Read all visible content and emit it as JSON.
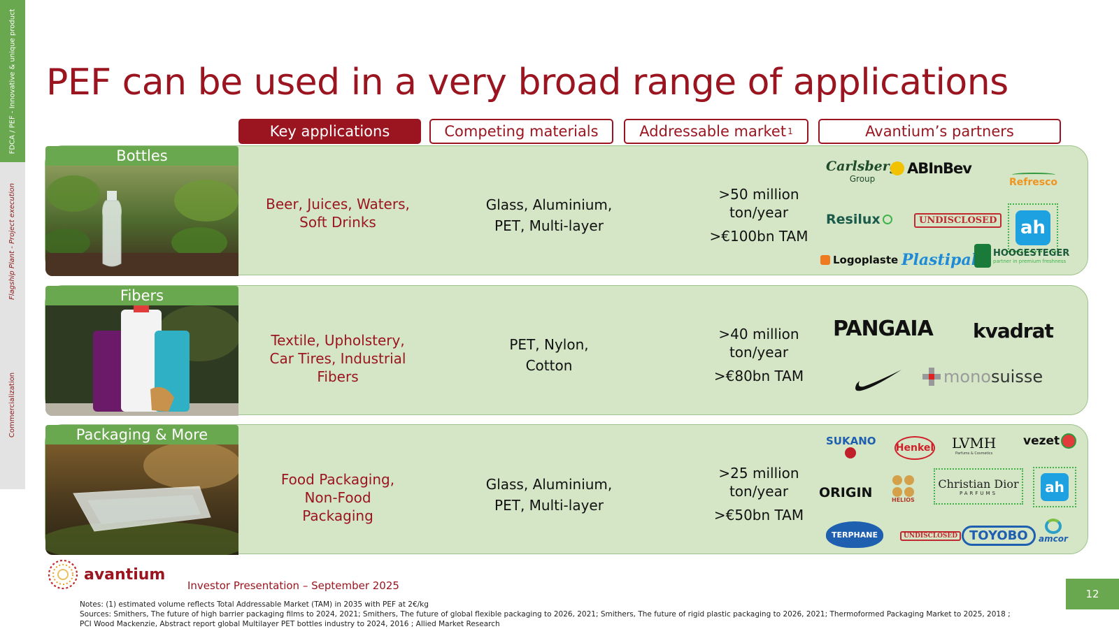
{
  "side_nav": {
    "seg1": "FDCA / PEF - Innovative & unique product",
    "seg2": "Flagship Plant - Project execution",
    "seg3": "Commercialization"
  },
  "title": "PEF can be used in a very broad range of applications",
  "columns": {
    "key_apps": "Key applications",
    "competing": "Competing materials",
    "addressable": "Addressable market",
    "addressable_sup": "1",
    "partners": "Avantium’s partners"
  },
  "rows": [
    {
      "label": "Bottles",
      "apps": [
        "Beer, Juices, Waters,",
        "Soft Drinks"
      ],
      "competing": [
        "Glass, Aluminium,",
        "PET, Multi-layer"
      ],
      "volume": [
        "&gt;50 million",
        "ton/year"
      ],
      "tam": ">€100bn TAM",
      "logos": {
        "carlsberg": "Carlsberg",
        "carlsberg_sub": "Group",
        "abinbev": "ABInBev",
        "refresco": "Refresco",
        "resilux": "Resilux",
        "undisclosed": "UNDISCLOSED",
        "logoplaste": "Logoplaste",
        "plastipak": "Plastipak",
        "hoogesteger": "HOOGESTEGER",
        "hoogesteger_sub": "partner in premium freshness"
      }
    },
    {
      "label": "Fibers",
      "apps": [
        "Textile, Upholstery,",
        "Car Tires, Industrial",
        "Fibers"
      ],
      "competing": [
        "PET, Nylon,",
        "Cotton"
      ],
      "volume": [
        "&gt;40 million",
        "ton/year"
      ],
      "tam": ">€80bn TAM",
      "logos": {
        "pangaia": "PANGAIA",
        "kvadrat": "kvadrat",
        "monosuisse_a": "mono",
        "monosuisse_b": "suisse"
      }
    },
    {
      "label": "Packaging & More",
      "apps": [
        "Food Packaging,",
        "Non-Food",
        "Packaging"
      ],
      "competing": [
        "Glass, Aluminium,",
        "PET, Multi-layer"
      ],
      "volume": [
        "&gt;25 million",
        "ton/year"
      ],
      "tam": ">€50bn TAM",
      "logos": {
        "suntory_a": "KA",
        "suntory_b": "SU",
        "suntory_c": "NO",
        "henkel": "Henkel",
        "lvmh": "LVMH",
        "lvmh_sub": "Parfums & Cosmetics",
        "vezet": "vezet",
        "origin": "ORIGIN",
        "helios": "HELIOS",
        "dior": "Christian Dior",
        "dior_sub": "PARFUMS",
        "terphane": "TERPHANE",
        "undisclosed": "UNDISCLOSED",
        "toyobo": "TOYOBO",
        "amcor": "amcor"
      }
    }
  ],
  "footer": {
    "brand": "avantium",
    "presentation": "Investor Presentation – September 2025",
    "page": "12",
    "notes_line1": "Notes: (1) estimated volume reflects Total Addressable Market (TAM) in 2035 with PEF at 2€/kg",
    "notes_line2": "Sources: Smithers, The future of high barrier packaging films to 2024, 2021; Smithers, The future of global flexible packaging to 2026, 2021; Smithers, The future of rigid plastic packaging to 2026, 2021; Thermoformed Packaging Market to 2025, 2018 ;",
    "notes_line3": "PCI Wood Mackenzie, Abstract report global Multilayer PET bottles industry to 2024, 2016 ; Allied Market Research"
  },
  "colors": {
    "accent": "#9b1520",
    "green": "#6aa84f",
    "row_bg": "#d5e6c7"
  }
}
